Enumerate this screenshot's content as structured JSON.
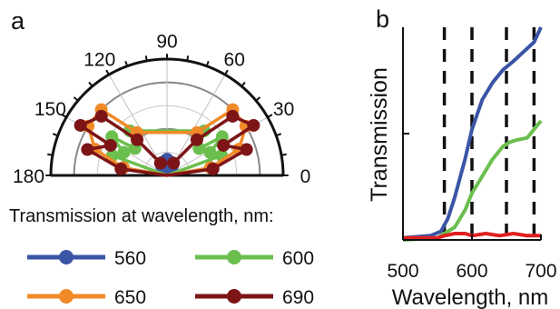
{
  "chart_data": [
    {
      "type": "polar",
      "panel_label": "a",
      "angle_ticks": [
        "180",
        "150",
        "120",
        "90",
        "60",
        "30",
        "0"
      ],
      "angle_range": [
        0,
        180
      ],
      "legend_title": "Transmission at wavelength, nm:",
      "series": [
        {
          "name": "560",
          "color": "#3a55a6",
          "points": [
            [
              75,
              0.12
            ],
            [
              90,
              0.14
            ],
            [
              105,
              0.12
            ],
            [
              60,
              0.09
            ],
            [
              120,
              0.09
            ],
            [
              50,
              0.06
            ],
            [
              130,
              0.06
            ]
          ]
        },
        {
          "name": "600",
          "color": "#6bbf4e",
          "points": [
            [
              20,
              0.5
            ],
            [
              35,
              0.58
            ],
            [
              50,
              0.5
            ],
            [
              130,
              0.5
            ],
            [
              145,
              0.58
            ],
            [
              160,
              0.5
            ],
            [
              28,
              0.42
            ],
            [
              152,
              0.42
            ],
            [
              40,
              0.36
            ],
            [
              140,
              0.36
            ]
          ]
        },
        {
          "name": "650",
          "color": "#f08a28",
          "points": [
            [
              10,
              0.38
            ],
            [
              20,
              0.66
            ],
            [
              32,
              0.8
            ],
            [
              45,
              0.8
            ],
            [
              55,
              0.45
            ],
            [
              125,
              0.45
            ],
            [
              135,
              0.8
            ],
            [
              148,
              0.8
            ],
            [
              160,
              0.66
            ],
            [
              170,
              0.38
            ]
          ]
        },
        {
          "name": "690",
          "color": "#7d1416",
          "points": [
            [
              8,
              0.4
            ],
            [
              18,
              0.72
            ],
            [
              30,
              0.86
            ],
            [
              42,
              0.76
            ],
            [
              50,
              0.4
            ],
            [
              62,
              0.12
            ],
            [
              118,
              0.12
            ],
            [
              130,
              0.4
            ],
            [
              138,
              0.76
            ],
            [
              150,
              0.86
            ],
            [
              162,
              0.72
            ],
            [
              172,
              0.4
            ],
            [
              28,
              0.55
            ],
            [
              152,
              0.55
            ]
          ]
        }
      ]
    },
    {
      "type": "line",
      "panel_label": "b",
      "xlabel": "Wavelength, nm",
      "ylabel": "Transmission",
      "xlim": [
        500,
        700
      ],
      "x_ticks": [
        "500",
        "600",
        "700"
      ],
      "dashed_lines_x": [
        560,
        600,
        650,
        690
      ],
      "series": [
        {
          "name": "blue",
          "color": "#3a55a6",
          "x": [
            500,
            540,
            555,
            565,
            575,
            590,
            600,
            615,
            630,
            645,
            660,
            670,
            680,
            690,
            700
          ],
          "y": [
            0.01,
            0.02,
            0.04,
            0.1,
            0.2,
            0.38,
            0.52,
            0.66,
            0.74,
            0.8,
            0.84,
            0.87,
            0.9,
            0.93,
            1.0
          ]
        },
        {
          "name": "green",
          "color": "#6bbf4e",
          "x": [
            500,
            550,
            575,
            590,
            600,
            615,
            630,
            645,
            655,
            665,
            680,
            690,
            700
          ],
          "y": [
            0.0,
            0.01,
            0.06,
            0.14,
            0.22,
            0.3,
            0.38,
            0.44,
            0.46,
            0.47,
            0.48,
            0.52,
            0.56
          ]
        },
        {
          "name": "red",
          "color": "#e02020",
          "x": [
            500,
            550,
            560,
            575,
            590,
            600,
            620,
            640,
            660,
            680,
            700
          ],
          "y": [
            0.01,
            0.01,
            0.02,
            0.03,
            0.03,
            0.02,
            0.03,
            0.02,
            0.03,
            0.02,
            0.02
          ]
        }
      ]
    }
  ]
}
